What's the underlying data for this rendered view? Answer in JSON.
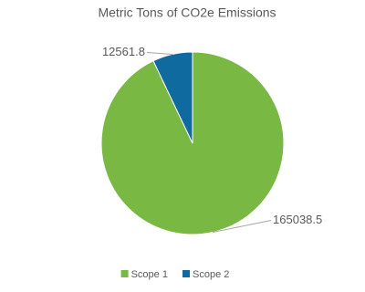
{
  "chart_data": {
    "type": "pie",
    "title": "Metric Tons of CO2e Emissions",
    "categories": [
      "Scope 1",
      "Scope 2"
    ],
    "values": [
      165038.5,
      12561.8
    ],
    "colors": [
      "#78b843",
      "#0f6aa0"
    ],
    "legend": "bottom"
  }
}
